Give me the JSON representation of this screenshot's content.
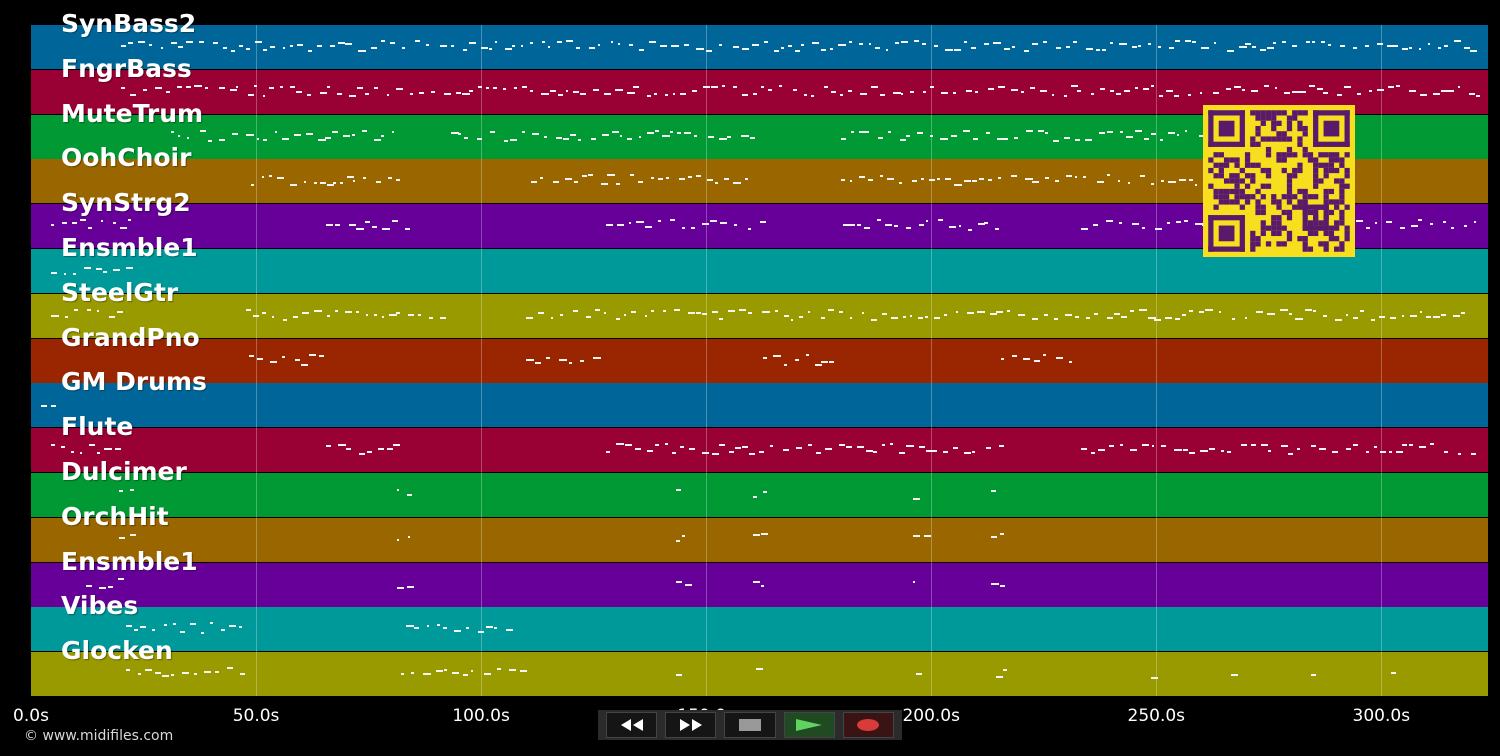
{
  "tracks": [
    {
      "name": "SynBass2",
      "color": "#00669a"
    },
    {
      "name": "FngrBass",
      "color": "#990033"
    },
    {
      "name": "MuteTrum",
      "color": "#009933"
    },
    {
      "name": "OohChoir",
      "color": "#996600"
    },
    {
      "name": "SynStrg2",
      "color": "#660099"
    },
    {
      "name": "Ensmble1",
      "color": "#009999"
    },
    {
      "name": "SteelGtr",
      "color": "#999900"
    },
    {
      "name": "GrandPno",
      "color": "#992600"
    },
    {
      "name": "GM Drums",
      "color": "#00669a"
    },
    {
      "name": "Flute",
      "color": "#990033"
    },
    {
      "name": "Dulcimer",
      "color": "#009933"
    },
    {
      "name": "OrchHit",
      "color": "#996600"
    },
    {
      "name": "Ensmble1",
      "color": "#660099"
    },
    {
      "name": "Vibes",
      "color": "#009999"
    },
    {
      "name": "Glocken",
      "color": "#999900"
    }
  ],
  "timeline": {
    "ticks": [
      "0.0s",
      "50.0s",
      "100.0s",
      "150.0s",
      "200.0s",
      "250.0s",
      "300.0s"
    ],
    "tick_values": [
      0,
      50,
      100,
      150,
      200,
      250,
      300
    ],
    "max_seconds": 323.7
  },
  "copyright": "© www.midifiles.com",
  "transport": {
    "buttons": [
      {
        "name": "rewind-button",
        "icon": "rewind-icon"
      },
      {
        "name": "fast-forward-button",
        "icon": "fast-forward-icon"
      },
      {
        "name": "stop-button",
        "icon": "stop-icon"
      },
      {
        "name": "play-button",
        "icon": "play-icon"
      },
      {
        "name": "record-button",
        "icon": "record-icon"
      }
    ]
  },
  "accent": {
    "qr": "#f7df20",
    "qr_dark": "#5a1a6a"
  }
}
